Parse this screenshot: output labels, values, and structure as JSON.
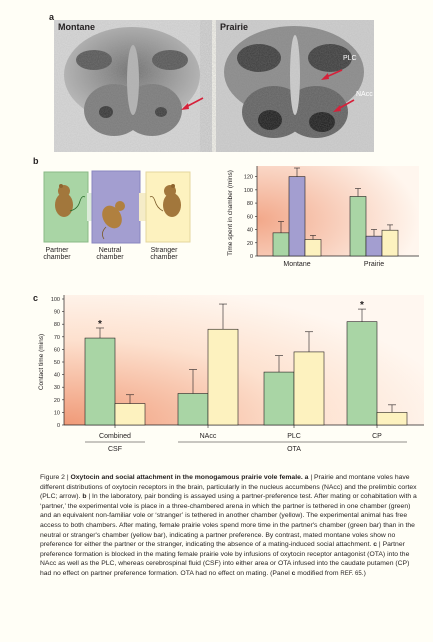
{
  "panel_a": {
    "label": "a",
    "left_title": "Montane",
    "right_title": "Prairie",
    "annot_plc": "PLC",
    "annot_nacc": "NAcc"
  },
  "panel_b": {
    "label": "b",
    "chambers": [
      "Partner\nchamber",
      "Neutral\nchamber",
      "Stranger\nchamber"
    ],
    "colors": {
      "partner": "#a9d5a5",
      "neutral": "#a39ed0",
      "stranger": "#fdf2bf"
    }
  },
  "panel_c": {
    "label": "c"
  },
  "chart_data": [
    {
      "type": "bar",
      "ylabel": "Time spent in chamber (mins)",
      "ylim": [
        0,
        130
      ],
      "yticks": [
        0,
        20,
        40,
        60,
        80,
        100,
        120
      ],
      "categories": [
        "Montane",
        "Prairie"
      ],
      "series": [
        {
          "color": "#a9d5a5",
          "values": [
            35,
            90
          ],
          "errors": [
            17,
            12
          ]
        },
        {
          "color": "#a39ed0",
          "values": [
            120,
            30
          ],
          "errors": [
            13,
            10
          ]
        },
        {
          "color": "#fdf2bf",
          "values": [
            25,
            39
          ],
          "errors": [
            6,
            8
          ]
        }
      ]
    },
    {
      "type": "bar",
      "ylabel": "Contact time (mins)",
      "ylim": [
        0,
        100
      ],
      "yticks": [
        0,
        10,
        20,
        30,
        40,
        50,
        60,
        70,
        80,
        90,
        100
      ],
      "categories": [
        "Combined",
        "NAcc",
        "PLC",
        "CP"
      ],
      "groups": [
        "CSF",
        "OTA"
      ],
      "series": [
        {
          "color": "#a9d5a5",
          "values": [
            69,
            25,
            42,
            82
          ],
          "errors": [
            8,
            19,
            13,
            10
          ]
        },
        {
          "color": "#fdf2bf",
          "values": [
            17,
            76,
            58,
            10
          ],
          "errors": [
            7,
            20,
            16,
            6
          ]
        }
      ],
      "significance": [
        "*",
        "",
        "",
        "*"
      ]
    }
  ],
  "caption": {
    "prefix": "Figure 2 | ",
    "title": "Oxytocin and social attachment in the monogamous prairie vole female.",
    "a_tag": "a",
    "a_text": " | Prairie and montane voles have different distributions of oxytocin receptors in the brain, particularly in the nucleus accumbens (NAcc) and the prelimbic cortex (PLC; arrow). ",
    "b_tag": "b",
    "b_text": " | In the laboratory, pair bonding is assayed using a partner-preference test. After mating or cohabitation with a ‘partner,’ the experimental vole is place in a three-chambered arena in which the partner is tethered in one chamber (green) and an equivalent non-familiar vole or ‘stranger’ is tethered in another chamber (yellow). The experimental animal has free access to both chambers. After mating, female prairie voles spend more time in the partner's chamber (green bar) than in the neutral or stranger's chamber (yellow bar), indicating a partner preference. By contrast, mated montane voles show no preference for either the partner or the stranger, indicating the absence of a mating-induced social attachment. ",
    "c_tag": "c",
    "c_text": " | Partner preference formation is blocked in the mating female prairie vole by infusions of oxytocin receptor antagonist (OTA) into the NAcc as well as the PLC, whereas cerebrospinal fluid (CSF) into either area or OTA infused into the caudate putamen (CP) had no effect on partner preference formation. OTA had no effect on mating. (Panel ",
    "c_tag2": "c",
    "c_tail": " modified from ",
    "ref": "REF. 65",
    "end": ".)"
  }
}
